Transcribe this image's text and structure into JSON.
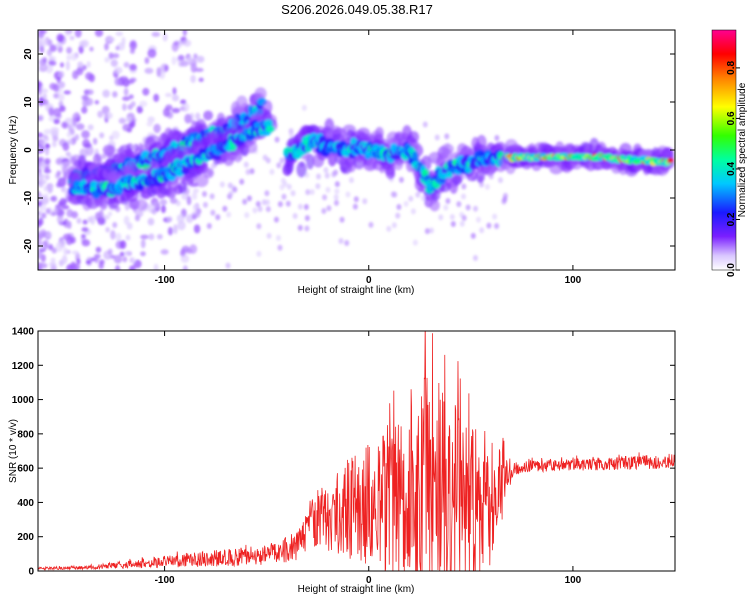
{
  "title": "S206.2026.049.05.38.R17",
  "colors": {
    "snr_line": "#ee2222",
    "background": "#ffffff",
    "colormap": [
      "#ffffff",
      "#d9c6ff",
      "#7a1fff",
      "#1a1aff",
      "#00c8ff",
      "#00ffa0",
      "#33ff00",
      "#ffff00",
      "#ff8000",
      "#ff0000",
      "#ff0090"
    ]
  },
  "chart_data": [
    {
      "type": "heatmap",
      "name": "spectrogram",
      "xlabel": "Height of straight line (km)",
      "ylabel": "Frequency (Hz)",
      "xlim": [
        -162,
        150
      ],
      "ylim": [
        -25,
        25
      ],
      "xticks": [
        -100,
        0,
        100
      ],
      "xtick_labels": [
        "-100",
        "0",
        "100"
      ],
      "yticks": [
        -20,
        -10,
        0,
        10,
        20
      ],
      "ytick_labels": [
        "-20",
        "-10",
        "0",
        "10",
        "20"
      ],
      "colorbar": {
        "label": "Normalized spectral amplitude",
        "range": [
          0,
          0.95
        ],
        "ticks": [
          0.0,
          0.2,
          0.4,
          0.6,
          0.8
        ],
        "tick_labels": [
          "0.0",
          "0.2",
          "0.4",
          "0.6",
          "0.8"
        ]
      },
      "ridge_tracks": [
        {
          "x": [
            -145,
            -130,
            -115,
            -100,
            -90,
            -80,
            -70,
            -60,
            -52
          ],
          "freq": [
            -6,
            -5,
            -3,
            -1,
            1,
            3,
            4,
            6,
            10
          ]
        },
        {
          "x": [
            -145,
            -130,
            -115,
            -105,
            -95,
            -85,
            -75,
            -65,
            -55,
            -48
          ],
          "freq": [
            -8,
            -8,
            -7,
            -6,
            -4,
            -2,
            0,
            2,
            4,
            5
          ]
        },
        {
          "x": [
            -40,
            -35,
            -28,
            -20,
            -10,
            0,
            10,
            20,
            25,
            30,
            35,
            45,
            55,
            65
          ],
          "freq": [
            -1,
            0,
            2,
            1,
            0,
            0,
            -1,
            0,
            -4,
            -8,
            -5,
            -3,
            -2,
            -2
          ]
        },
        {
          "x": [
            68,
            80,
            90,
            100,
            110,
            120,
            130,
            140,
            148
          ],
          "freq": [
            -1.5,
            -1.5,
            -1.5,
            -1.5,
            -1.5,
            -1.7,
            -2,
            -2.3,
            -2.5
          ]
        }
      ]
    },
    {
      "type": "line",
      "name": "snr",
      "xlabel": "Height of straight line (km)",
      "ylabel": "SNR (10 * v/v)",
      "xlim": [
        -162,
        150
      ],
      "ylim": [
        0,
        1400
      ],
      "xticks": [
        -100,
        0,
        100
      ],
      "xtick_labels": [
        "-100",
        "0",
        "100"
      ],
      "yticks": [
        0,
        200,
        400,
        600,
        800,
        1000,
        1200,
        1400
      ],
      "ytick_labels": [
        "0",
        "200",
        "400",
        "600",
        "800",
        "1000",
        "1200",
        "1400"
      ],
      "envelope": {
        "x": [
          -162,
          -140,
          -120,
          -100,
          -80,
          -60,
          -45,
          -35,
          -30,
          -25,
          -15,
          -5,
          5,
          15,
          25,
          30,
          35,
          40,
          50,
          60,
          70,
          75,
          100,
          125,
          150
        ],
        "mean": [
          15,
          20,
          35,
          55,
          70,
          85,
          100,
          150,
          250,
          300,
          350,
          380,
          400,
          430,
          450,
          480,
          480,
          450,
          420,
          420,
          580,
          610,
          620,
          630,
          640
        ],
        "spread": [
          8,
          10,
          20,
          35,
          45,
          55,
          60,
          100,
          140,
          180,
          250,
          330,
          400,
          500,
          620,
          700,
          650,
          560,
          500,
          400,
          50,
          35,
          35,
          40,
          45
        ]
      }
    }
  ]
}
